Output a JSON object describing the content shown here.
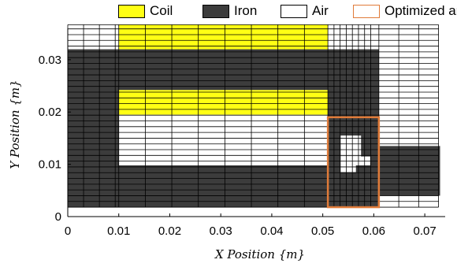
{
  "legend": {
    "items": [
      {
        "label": "Coil",
        "color": "#ffff14"
      },
      {
        "label": "Iron",
        "color": "#3c3c3c"
      },
      {
        "label": "Air",
        "color": "#ffffff"
      },
      {
        "label": "Optimized area",
        "color": "#ffffff",
        "edge": "#e07b39"
      }
    ]
  },
  "chart_data": {
    "type": "heatmap",
    "title": "",
    "xlabel": "X Position {m}",
    "ylabel": "Y Position {m}",
    "xlim": [
      0,
      0.074
    ],
    "ylim": [
      0,
      0.036
    ],
    "xticks": [
      "0",
      "0.01",
      "0.02",
      "0.03",
      "0.04",
      "0.05",
      "0.06",
      "0.07"
    ],
    "xtick_values": [
      0,
      0.01,
      0.02,
      0.03,
      0.04,
      0.05,
      0.06,
      0.07
    ],
    "yticks": [
      "0",
      "0.01",
      "0.02",
      "0.03"
    ],
    "ytick_values": [
      0,
      0.01,
      0.02,
      0.03
    ],
    "materials": {
      "coil": "#ffff14",
      "iron": "#3c3c3c",
      "air": "#ffffff",
      "optimized_edge": "#e07b39"
    },
    "regions": [
      {
        "material": "iron",
        "x": [
          0,
          0.01
        ],
        "y": [
          0.0018,
          0.032
        ]
      },
      {
        "material": "iron",
        "x": [
          0.01,
          0.051
        ],
        "y": [
          0.0018,
          0.0098
        ]
      },
      {
        "material": "iron",
        "x": [
          0.01,
          0.051
        ],
        "y": [
          0.0242,
          0.032
        ]
      },
      {
        "material": "coil",
        "x": [
          0.01,
          0.051
        ],
        "y": [
          0.032,
          0.0367
        ]
      },
      {
        "material": "coil",
        "x": [
          0.01,
          0.051
        ],
        "y": [
          0.0195,
          0.0242
        ]
      },
      {
        "material": "iron",
        "x": [
          0.051,
          0.061
        ],
        "y": [
          0.019,
          0.032
        ]
      },
      {
        "material": "iron",
        "x": [
          0.051,
          0.061
        ],
        "y": [
          0.0018,
          0.019
        ]
      },
      {
        "material": "air",
        "x": [
          0.0535,
          0.0575
        ],
        "y": [
          0.0115,
          0.0155
        ]
      },
      {
        "material": "air",
        "x": [
          0.0535,
          0.0593
        ],
        "y": [
          0.0098,
          0.0115
        ]
      },
      {
        "material": "air",
        "x": [
          0.0535,
          0.0565
        ],
        "y": [
          0.0085,
          0.0098
        ]
      },
      {
        "material": "iron",
        "x": [
          0.061,
          0.073
        ],
        "y": [
          0.004,
          0.0135
        ]
      }
    ],
    "optimized_area": {
      "x": [
        0.051,
        0.061
      ],
      "y": [
        0.0018,
        0.019
      ]
    },
    "x_grid_lines": [
      0,
      0.0031,
      0.0062,
      0.0093,
      0.01,
      0.0152,
      0.0204,
      0.0256,
      0.0308,
      0.036,
      0.0412,
      0.0464,
      0.051,
      0.0522,
      0.0534,
      0.0546,
      0.0558,
      0.057,
      0.0582,
      0.0594,
      0.061,
      0.0649,
      0.0688,
      0.0727
    ],
    "y_grid_lines": [
      0.0018,
      0.0029,
      0.004,
      0.0051,
      0.0062,
      0.0073,
      0.0084,
      0.0095,
      0.0106,
      0.0117,
      0.0128,
      0.0139,
      0.015,
      0.0161,
      0.0172,
      0.0183,
      0.0194,
      0.0205,
      0.0216,
      0.0227,
      0.0238,
      0.0249,
      0.026,
      0.0271,
      0.0282,
      0.0293,
      0.0304,
      0.0315,
      0.0326,
      0.0337,
      0.0348,
      0.0359,
      0.0367
    ]
  }
}
